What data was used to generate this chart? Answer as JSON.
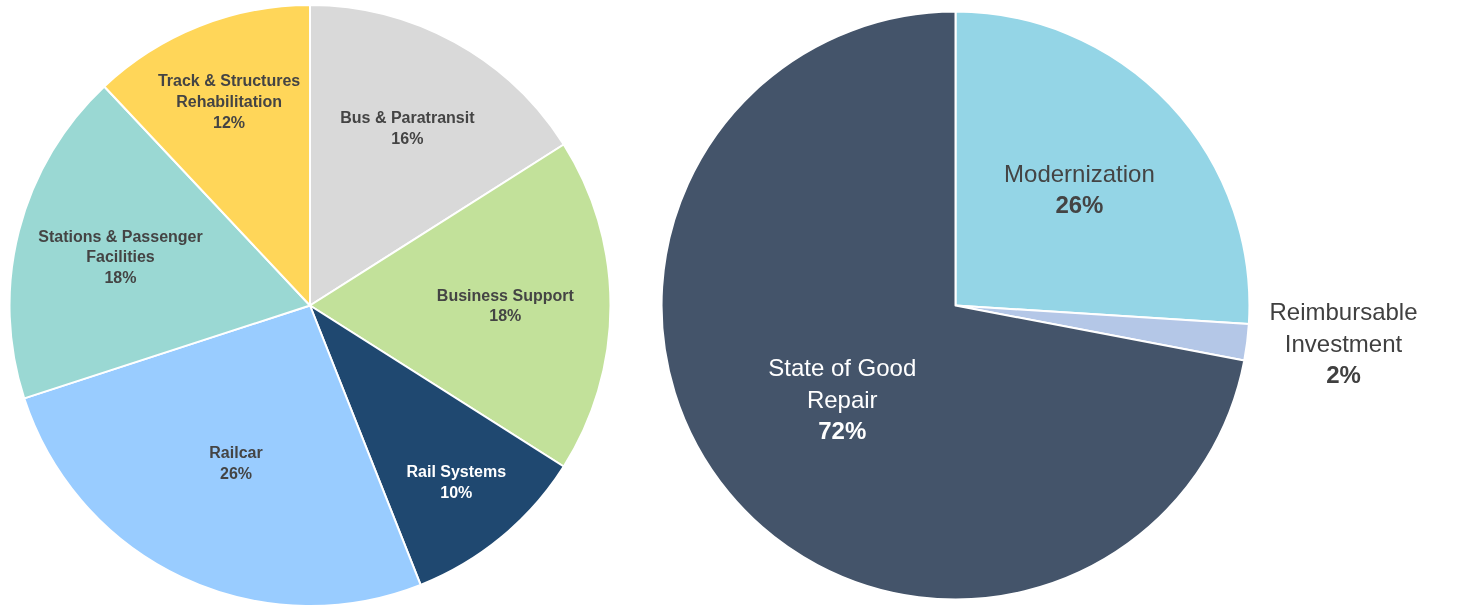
{
  "chart_data": [
    {
      "type": "pie",
      "categories": [
        "Bus & Paratransit",
        "Business Support",
        "Rail Systems",
        "Railcar",
        "Stations & Passenger Facilities",
        "Track & Structures Rehabilitation"
      ],
      "values": [
        16,
        18,
        10,
        26,
        18,
        12
      ],
      "colors": [
        "#d9d9d9",
        "#c2e19a",
        "#1f4870",
        "#99ccff",
        "#9ad8d3",
        "#ffd659"
      ],
      "value_labels": [
        "16%",
        "18%",
        "10%",
        "26%",
        "18%",
        "12%"
      ]
    },
    {
      "type": "pie",
      "categories": [
        "Modernization",
        "Reimbursable Investment",
        "State of Good Repair"
      ],
      "values": [
        26,
        2,
        72
      ],
      "colors": [
        "#94d5e6",
        "#b4c7e7",
        "#44546a"
      ],
      "value_labels": [
        "26%",
        "2%",
        "72%"
      ]
    }
  ]
}
